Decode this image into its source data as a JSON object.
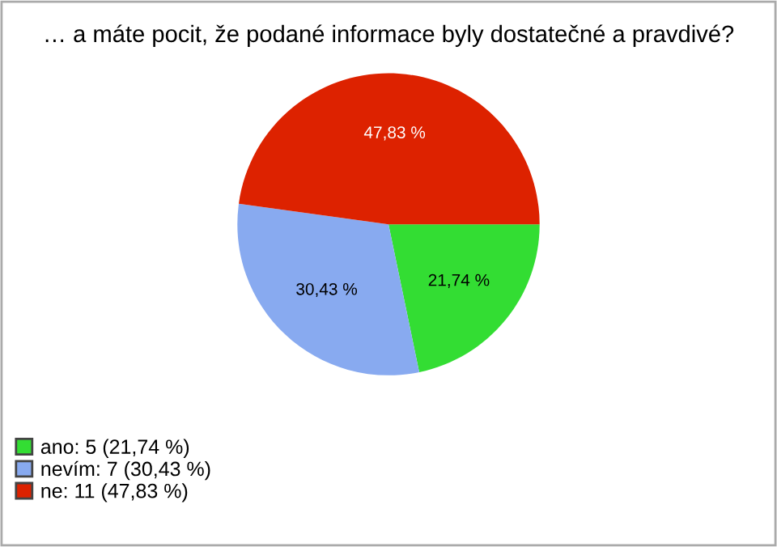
{
  "chart_data": {
    "type": "pie",
    "title": "… a máte pocit, že podané informace byly dostatečné a pravdivé?",
    "categories": [
      "ano: 5 (21,74 %)",
      "nevím: 7 (30,43 %)",
      "ne: 11 (47,83 %)"
    ],
    "values": [
      21.74,
      30.43,
      47.83
    ],
    "value_labels": [
      "21,74 %",
      "30,43 %",
      "47,83 %"
    ],
    "colors": [
      "#33dd33",
      "#88aaf0",
      "#dd2200"
    ],
    "legend": "bottom left"
  }
}
